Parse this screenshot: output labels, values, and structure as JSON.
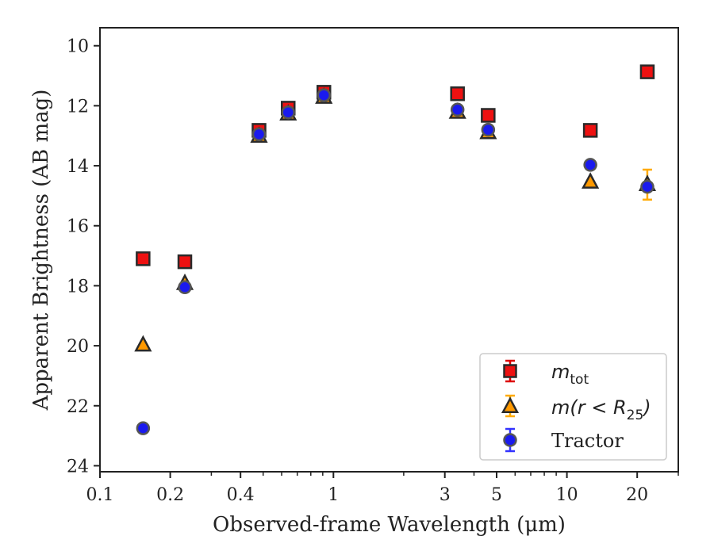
{
  "chart_data": {
    "type": "scatter",
    "xlabel": "Observed-frame Wavelength (μm)",
    "ylabel": "Apparent Brightness (AB mag)",
    "xscale": "log",
    "xlim": [
      0.1,
      30
    ],
    "ylim": [
      24.2,
      9.4
    ],
    "y_inverted": true,
    "xticks": [
      {
        "value": 0.1,
        "label": "0.1"
      },
      {
        "value": 0.2,
        "label": "0.2"
      },
      {
        "value": 0.4,
        "label": "0.4"
      },
      {
        "value": 1,
        "label": "1"
      },
      {
        "value": 3,
        "label": "3"
      },
      {
        "value": 5,
        "label": "5"
      },
      {
        "value": 10,
        "label": "10"
      },
      {
        "value": 20,
        "label": "20"
      }
    ],
    "xminor": [
      0.3,
      0.5,
      0.6,
      0.7,
      0.8,
      0.9,
      2,
      4,
      6,
      7,
      8,
      9,
      30
    ],
    "yticks": [
      10,
      12,
      14,
      16,
      18,
      20,
      22,
      24
    ],
    "grid": false,
    "legend_position": "lower-right",
    "colors": {
      "m_tot": "#ee1111",
      "m_r25": "#ff9900",
      "tractor": "#1a1aee",
      "edge": "#2a2a2a",
      "tractor_edge": "#555555",
      "tractor_err": "#3333ff",
      "m_r25_err": "#ffaa00",
      "m_tot_err": "#dd0000"
    },
    "series": [
      {
        "name": "m_tot",
        "marker": "square",
        "points": [
          {
            "x": 0.153,
            "y": 17.1
          },
          {
            "x": 0.231,
            "y": 17.2
          },
          {
            "x": 0.48,
            "y": 12.82
          },
          {
            "x": 0.64,
            "y": 12.08
          },
          {
            "x": 0.91,
            "y": 11.55
          },
          {
            "x": 3.4,
            "y": 11.6
          },
          {
            "x": 4.6,
            "y": 12.32
          },
          {
            "x": 12.6,
            "y": 12.82
          },
          {
            "x": 22.1,
            "y": 10.87
          }
        ]
      },
      {
        "name": "m(r < R25)",
        "marker": "triangle",
        "points": [
          {
            "x": 0.153,
            "y": 19.98
          },
          {
            "x": 0.231,
            "y": 17.93
          },
          {
            "x": 0.48,
            "y": 13.02
          },
          {
            "x": 0.64,
            "y": 12.28
          },
          {
            "x": 0.91,
            "y": 11.72
          },
          {
            "x": 3.4,
            "y": 12.22
          },
          {
            "x": 4.6,
            "y": 12.9
          },
          {
            "x": 12.6,
            "y": 14.55
          },
          {
            "x": 22.1,
            "y": 14.63,
            "yerr": 0.5
          }
        ]
      },
      {
        "name": "Tractor",
        "marker": "circle",
        "points": [
          {
            "x": 0.153,
            "y": 22.75
          },
          {
            "x": 0.231,
            "y": 18.05
          },
          {
            "x": 0.48,
            "y": 12.95
          },
          {
            "x": 0.64,
            "y": 12.22
          },
          {
            "x": 0.91,
            "y": 11.65
          },
          {
            "x": 3.4,
            "y": 12.13
          },
          {
            "x": 4.6,
            "y": 12.8
          },
          {
            "x": 12.6,
            "y": 13.97
          },
          {
            "x": 22.1,
            "y": 14.7
          }
        ]
      }
    ],
    "legend": [
      {
        "series": "m_tot",
        "label_main": "m",
        "label_sub": "tot",
        "label_rest": ""
      },
      {
        "series": "m(r < R25)",
        "label_main": "m(r < R",
        "label_sub": "25",
        "label_rest": ")"
      },
      {
        "series": "Tractor",
        "label_main": "Tractor",
        "label_sub": "",
        "label_rest": ""
      }
    ]
  }
}
